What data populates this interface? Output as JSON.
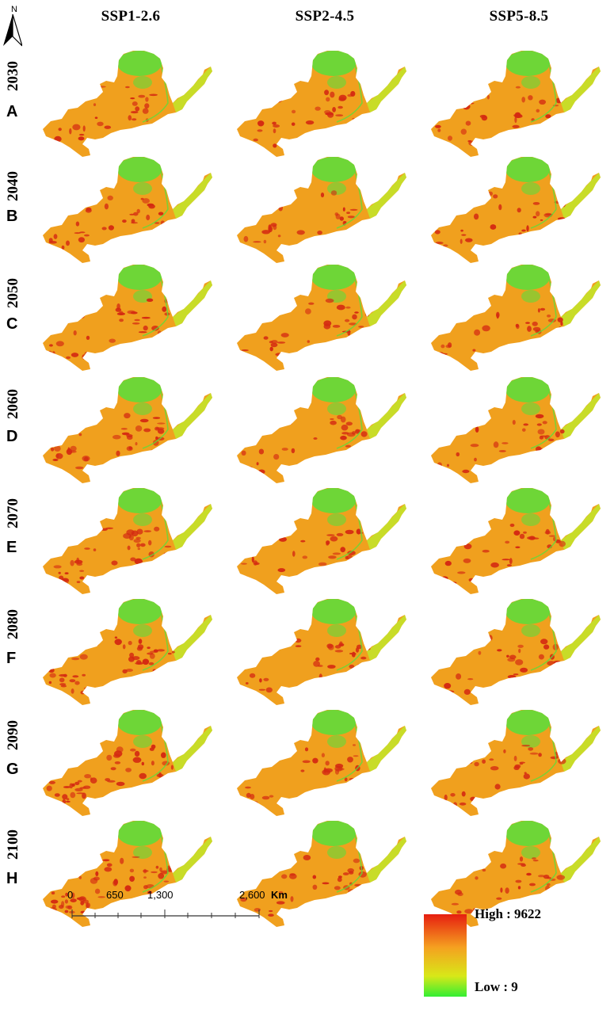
{
  "north_arrow": {
    "label": "N"
  },
  "scenarios": [
    "SSP1-2.6",
    "SSP2-4.5",
    "SSP5-8.5"
  ],
  "rows": [
    {
      "year": "2030",
      "letter": "A"
    },
    {
      "year": "2040",
      "letter": "B"
    },
    {
      "year": "2050",
      "letter": "C"
    },
    {
      "year": "2060",
      "letter": "D"
    },
    {
      "year": "2070",
      "letter": "E"
    },
    {
      "year": "2080",
      "letter": "F"
    },
    {
      "year": "2090",
      "letter": "G"
    },
    {
      "year": "2100",
      "letter": "H"
    }
  ],
  "scale_bar": {
    "ticks": [
      "0",
      "650",
      "1,300",
      "2,600"
    ],
    "unit": "Km"
  },
  "legend": {
    "high_label": "High : 9622",
    "low_label": "Low : 9",
    "colors": {
      "high": "#e61e10",
      "mid": "#f5a020",
      "low": "#33ee33"
    }
  },
  "map_colors": {
    "base": "#f0a01e",
    "hot": "#d42a12",
    "green": "#5fdc3a",
    "yellow": "#c8dc28"
  }
}
